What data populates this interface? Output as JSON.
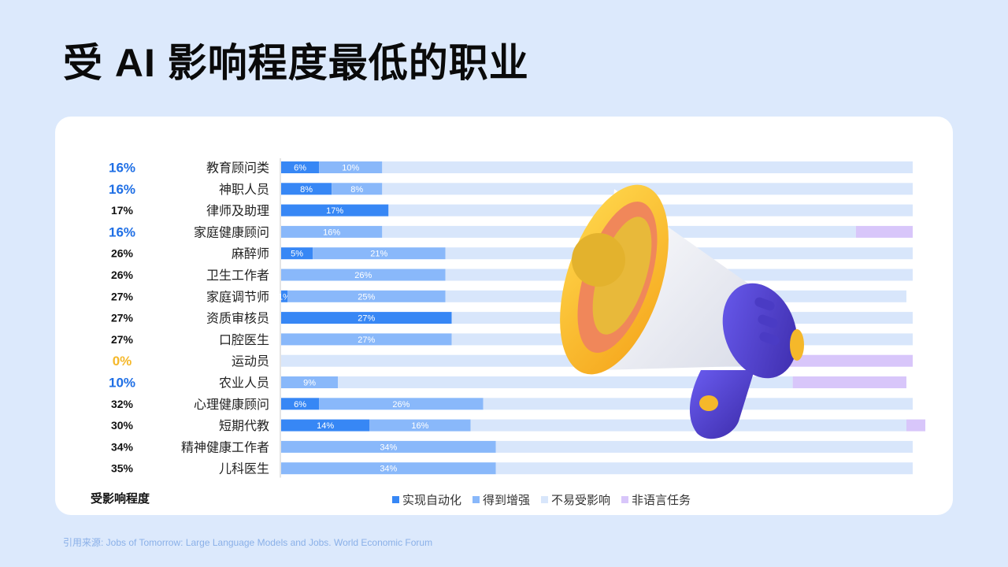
{
  "title": "受 AI 影响程度最低的职业",
  "source": "引用来源:  Jobs of Tomorrow: Large Language Models and Jobs. World Economic Forum",
  "footer_label": "受影响程度",
  "colors": {
    "automation": "#3787f5",
    "augmentation": "#89b8fa",
    "low_exposure": "#d8e6fb",
    "non_language": "#d8c6fa",
    "pct_blue": "#1f6fe5",
    "pct_yellow": "#f5b82a",
    "pct_black": "#111111"
  },
  "icons": {
    "illustration": "megaphone-icon"
  },
  "chart_data": {
    "type": "bar",
    "stacked": true,
    "orientation": "horizontal",
    "xlim": [
      0,
      100
    ],
    "legend_position": "bottom",
    "categories": [
      "教育顾问类",
      "神职人员",
      "律师及助理",
      "家庭健康顾问",
      "麻醉师",
      "卫生工作者",
      "家庭调节师",
      "资质审核员",
      "口腔医生",
      "运动员",
      "农业人员",
      "心理健康顾问",
      "短期代教",
      "精神健康工作者",
      "儿科医生"
    ],
    "impact_labels": [
      "16%",
      "16%",
      "17%",
      "16%",
      "26%",
      "26%",
      "27%",
      "27%",
      "27%",
      "0%",
      "10%",
      "32%",
      "30%",
      "34%",
      "35%"
    ],
    "impact_styles": [
      "blue",
      "blue",
      "black",
      "blue",
      "black",
      "black",
      "black",
      "black",
      "black",
      "yellow",
      "blue",
      "black",
      "black",
      "black",
      "black"
    ],
    "series": [
      {
        "name": "实现自动化",
        "values": [
          6,
          8,
          17,
          0,
          5,
          0,
          1,
          27,
          0,
          0,
          0,
          6,
          14,
          0,
          0
        ],
        "labels": [
          "6%",
          "8%",
          "17%",
          "",
          "5%",
          "",
          "1%",
          "27%",
          "",
          "",
          "",
          "6%",
          "14%",
          "",
          ""
        ]
      },
      {
        "name": "得到增强",
        "values": [
          10,
          8,
          0,
          16,
          21,
          26,
          25,
          0,
          27,
          0,
          9,
          26,
          16,
          34,
          34
        ],
        "labels": [
          "10%",
          "8%",
          "",
          "16%",
          "21%",
          "26%",
          "25%",
          "",
          "27%",
          "",
          "9%",
          "26%",
          "16%",
          "34%",
          "34%"
        ]
      },
      {
        "name": "不易受影响",
        "values": [
          84,
          84,
          83,
          75,
          74,
          74,
          73,
          73,
          73,
          80,
          72,
          68,
          69,
          66,
          66
        ],
        "labels": []
      },
      {
        "name": "非语言任务",
        "values": [
          0,
          0,
          0,
          9,
          0,
          0,
          0,
          0,
          0,
          20,
          18,
          0,
          3,
          0,
          0
        ],
        "labels": []
      }
    ]
  }
}
